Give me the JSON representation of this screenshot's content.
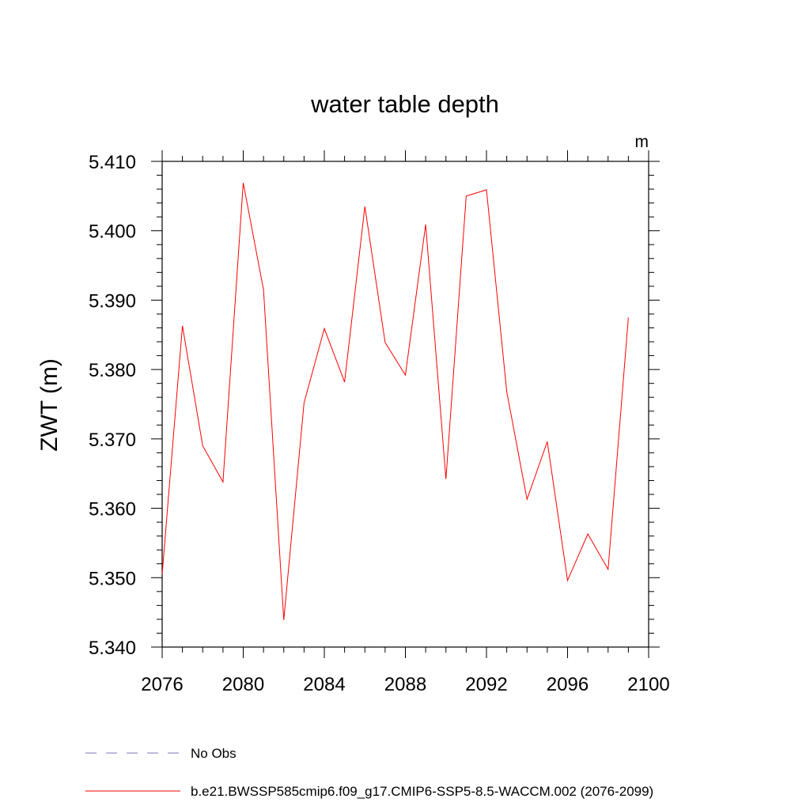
{
  "chart_data": {
    "type": "line",
    "title": "water table depth",
    "xlabel": "",
    "ylabel": "ZWT  (m)",
    "units": "m",
    "xlim": [
      2076,
      2100
    ],
    "ylim": [
      5.34,
      5.41
    ],
    "xticks": [
      2076,
      2080,
      2084,
      2088,
      2092,
      2096,
      2100
    ],
    "xtick_labels": [
      "2076",
      "2080",
      "2084",
      "2088",
      "2092",
      "2096",
      "2100"
    ],
    "yticks": [
      5.34,
      5.35,
      5.36,
      5.37,
      5.38,
      5.39,
      5.4,
      5.41
    ],
    "ytick_labels": [
      "5.340",
      "5.350",
      "5.360",
      "5.370",
      "5.380",
      "5.390",
      "5.400",
      "5.410"
    ],
    "grid": false,
    "series": [
      {
        "name": "b.e21.BWSSP585cmip6.f09_g17.CMIP6-SSP5-8.5-WACCM.002 (2076-2099)",
        "color": "#ff0000",
        "dash": "solid",
        "x": [
          2076,
          2077,
          2078,
          2079,
          2080,
          2081,
          2082,
          2083,
          2084,
          2085,
          2086,
          2087,
          2088,
          2089,
          2090,
          2091,
          2092,
          2093,
          2094,
          2095,
          2096,
          2097,
          2098,
          2099
        ],
        "y": [
          5.3505,
          5.3863,
          5.369,
          5.3638,
          5.4069,
          5.3915,
          5.3439,
          5.3752,
          5.3859,
          5.3782,
          5.4035,
          5.3839,
          5.3792,
          5.4009,
          5.3642,
          5.405,
          5.4059,
          5.3768,
          5.3613,
          5.3696,
          5.3496,
          5.3563,
          5.3512,
          5.3875
        ]
      }
    ],
    "legend": [
      {
        "label": "No Obs",
        "color": "#7777bb",
        "dash": "dashed"
      },
      {
        "label": "b.e21.BWSSP585cmip6.f09_g17.CMIP6-SSP5-8.5-WACCM.002 (2076-2099)",
        "color": "#ff0000",
        "dash": "solid"
      }
    ],
    "legend_position": "bottom-left"
  }
}
